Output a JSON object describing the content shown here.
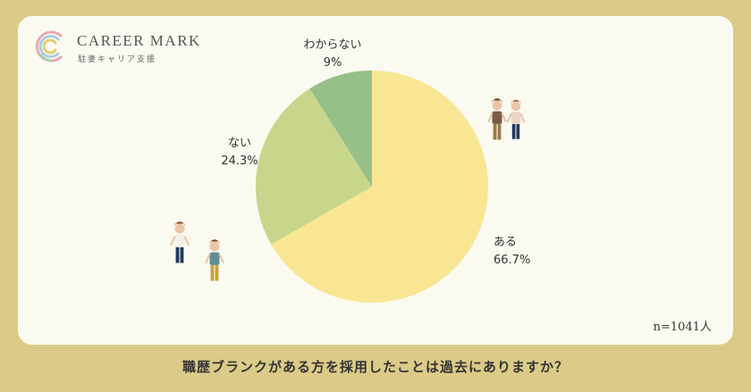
{
  "brand": {
    "name": "CAREER MARK",
    "tagline": "駐妻キャリア支援"
  },
  "sample_size": "n=1041人",
  "question": "職歴ブランクがある方を採用したことは過去にありますか？",
  "chart_data": {
    "type": "pie",
    "slices": [
      {
        "label": "ある",
        "value": 66.7,
        "value_text": "66.7%",
        "color": "#f8e693"
      },
      {
        "label": "ない",
        "value": 24.3,
        "value_text": "24.3%",
        "color": "#c8d68c"
      },
      {
        "label": "わからない",
        "value": 9,
        "value_text": "9%",
        "color": "#97bf88"
      }
    ]
  }
}
